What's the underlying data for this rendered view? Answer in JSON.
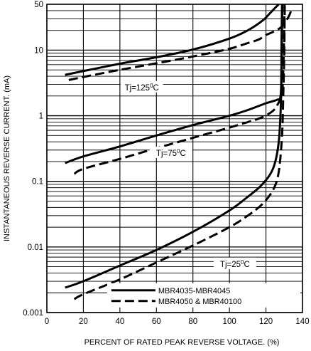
{
  "chart_data": {
    "type": "line",
    "title": "",
    "xlabel": "PERCENT OF RATED PEAK REVERSE VOLTAGE. (%)",
    "ylabel": "INSTANTANEOUS REVERSE CURRENT. (mA)",
    "xlim": [
      0,
      140
    ],
    "ylim": [
      0.001,
      50
    ],
    "yscale": "log",
    "grid": true,
    "x_ticks": [
      "0",
      "20",
      "40",
      "60",
      "80",
      "100",
      "120",
      "140"
    ],
    "y_ticks": [
      {
        "value": 0.001,
        "label": "0.001"
      },
      {
        "value": 0.01,
        "label": "0.01"
      },
      {
        "value": 0.1,
        "label": "0.1"
      },
      {
        "value": 1,
        "label": "1"
      },
      {
        "value": 10,
        "label": "10"
      },
      {
        "value": 50,
        "label": "50"
      }
    ],
    "series": [
      {
        "name": "MBR4035-MBR4045",
        "style": "solid",
        "temperature": "Tj=125°C",
        "points": [
          [
            10,
            4.2
          ],
          [
            20,
            4.8
          ],
          [
            40,
            6.2
          ],
          [
            60,
            7.8
          ],
          [
            80,
            10.2
          ],
          [
            100,
            15
          ],
          [
            110,
            20
          ],
          [
            118,
            28
          ],
          [
            122,
            36
          ],
          [
            125,
            44
          ],
          [
            127,
            50
          ]
        ]
      },
      {
        "name": "MBR4035-MBR4045",
        "style": "solid",
        "temperature": "Tj=75°C",
        "points": [
          [
            10,
            0.19
          ],
          [
            20,
            0.24
          ],
          [
            40,
            0.34
          ],
          [
            60,
            0.5
          ],
          [
            80,
            0.72
          ],
          [
            100,
            1.0
          ],
          [
            110,
            1.22
          ],
          [
            120,
            1.55
          ],
          [
            126,
            1.75
          ],
          [
            128,
            2.0
          ],
          [
            128.5,
            5
          ],
          [
            128.8,
            20
          ],
          [
            129,
            50
          ]
        ]
      },
      {
        "name": "MBR4035-MBR4045",
        "style": "solid",
        "temperature": "Tj=25°C",
        "points": [
          [
            10,
            0.0024
          ],
          [
            20,
            0.003
          ],
          [
            40,
            0.0052
          ],
          [
            60,
            0.009
          ],
          [
            80,
            0.017
          ],
          [
            100,
            0.036
          ],
          [
            110,
            0.058
          ],
          [
            118,
            0.09
          ],
          [
            124,
            0.16
          ],
          [
            127,
            0.4
          ],
          [
            128.3,
            2
          ],
          [
            128.5,
            10
          ],
          [
            128.8,
            50
          ]
        ]
      },
      {
        "name": "MBR4050 & MBR40100",
        "style": "dashed",
        "temperature": "Tj=125°C",
        "points": [
          [
            12,
            3.5
          ],
          [
            20,
            3.9
          ],
          [
            40,
            5.0
          ],
          [
            60,
            6.3
          ],
          [
            80,
            8.0
          ],
          [
            100,
            10.5
          ],
          [
            110,
            12.8
          ],
          [
            116,
            14.5
          ],
          [
            120,
            17
          ],
          [
            124,
            19
          ],
          [
            128,
            22
          ],
          [
            131,
            28
          ],
          [
            133,
            35
          ],
          [
            134,
            42
          ]
        ]
      },
      {
        "name": "MBR4050 & MBR40100",
        "style": "dashed",
        "temperature": "Tj=75°C",
        "points": [
          [
            15,
            0.13
          ],
          [
            20,
            0.155
          ],
          [
            40,
            0.22
          ],
          [
            60,
            0.32
          ],
          [
            80,
            0.46
          ],
          [
            100,
            0.66
          ],
          [
            110,
            0.8
          ],
          [
            118,
            0.95
          ],
          [
            124,
            1.2
          ],
          [
            127,
            1.6
          ],
          [
            128.8,
            2.2
          ],
          [
            129.5,
            5
          ],
          [
            130,
            20
          ],
          [
            130.2,
            50
          ]
        ]
      },
      {
        "name": "MBR4050 & MBR40100",
        "style": "dashed",
        "temperature": "Tj=25°C",
        "points": [
          [
            15,
            0.0016
          ],
          [
            20,
            0.0019
          ],
          [
            40,
            0.0032
          ],
          [
            60,
            0.0058
          ],
          [
            80,
            0.0105
          ],
          [
            100,
            0.02
          ],
          [
            110,
            0.03
          ],
          [
            118,
            0.045
          ],
          [
            124,
            0.075
          ],
          [
            127,
            0.14
          ],
          [
            128.8,
            0.5
          ],
          [
            129.5,
            2.2
          ],
          [
            130,
            8
          ],
          [
            130.3,
            50
          ]
        ]
      }
    ],
    "annotations": [
      {
        "text": "Tj=125",
        "sup": "0",
        "unit": "C",
        "at": [
          52,
          2.7
        ]
      },
      {
        "text": "Tj=75",
        "sup": "0",
        "unit": "C",
        "at": [
          68,
          0.27
        ]
      },
      {
        "text": "Tj=25",
        "sup": "0",
        "unit": "C",
        "at": [
          103,
          0.0055
        ]
      }
    ],
    "legend": {
      "placement": "bottom-right",
      "entries": [
        {
          "label": "MBR4035-MBR4045",
          "style": "solid"
        },
        {
          "label": "MBR4050 & MBR40100",
          "style": "dashed"
        }
      ]
    }
  }
}
